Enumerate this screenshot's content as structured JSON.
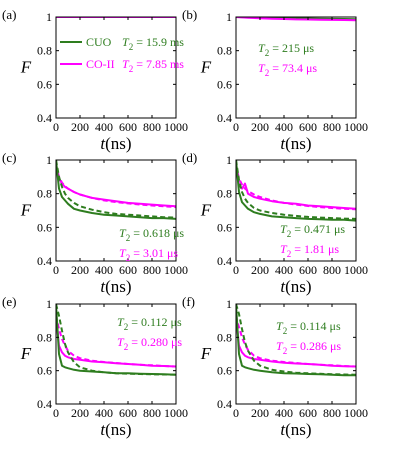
{
  "colors": {
    "green": "#2e7d1f",
    "magenta": "#ff00ff"
  },
  "chart_data": [
    {
      "type": "line",
      "label": "(a)",
      "xlabel": "t(ns)",
      "ylabel": "F",
      "xlim": [
        0,
        1000
      ],
      "ylim": [
        0.4,
        1.0
      ],
      "xticks": [
        "0",
        "200",
        "400",
        "600",
        "800",
        "1000"
      ],
      "yticks": [
        "0.4",
        "0.6",
        "0.8",
        "1"
      ],
      "legend": {
        "placement": "upper-left",
        "entries": [
          {
            "label": "CUO",
            "color": "green"
          },
          {
            "label": "CO-II",
            "color": "magenta"
          }
        ]
      },
      "annotations": [
        {
          "text": "T2 = 15.9 ms",
          "color": "green"
        },
        {
          "text": "T2 = 7.85 ms",
          "color": "magenta"
        }
      ],
      "x": [
        0,
        100,
        200,
        300,
        400,
        500,
        600,
        700,
        800,
        900,
        1000
      ],
      "series": [
        {
          "name": "CUO",
          "color": "green",
          "style": "solid",
          "values": [
            1,
            1,
            1,
            1,
            1,
            1,
            1,
            1,
            1,
            1,
            1
          ]
        },
        {
          "name": "CO-II",
          "color": "magenta",
          "style": "solid",
          "values": [
            1,
            1,
            1,
            1,
            1,
            1,
            1,
            1,
            1,
            1,
            1
          ]
        }
      ]
    },
    {
      "type": "line",
      "label": "(b)",
      "xlabel": "t(ns)",
      "ylabel": "F",
      "xlim": [
        0,
        1000
      ],
      "ylim": [
        0.4,
        1.0
      ],
      "xticks": [
        "0",
        "200",
        "400",
        "600",
        "800",
        "1000"
      ],
      "yticks": [
        "0.4",
        "0.6",
        "0.8",
        "1"
      ],
      "annotations": [
        {
          "text": "T2 = 215 μs",
          "color": "green"
        },
        {
          "text": "T2 = 73.4 μs",
          "color": "magenta"
        }
      ],
      "x": [
        0,
        100,
        200,
        300,
        400,
        500,
        600,
        700,
        800,
        900,
        1000
      ],
      "series": [
        {
          "color": "green",
          "style": "solid",
          "values": [
            1,
            0.998,
            0.996,
            0.994,
            0.993,
            0.992,
            0.991,
            0.99,
            0.989,
            0.988,
            0.987
          ]
        },
        {
          "color": "magenta",
          "style": "solid",
          "values": [
            1,
            0.996,
            0.993,
            0.99,
            0.988,
            0.986,
            0.985,
            0.984,
            0.983,
            0.982,
            0.981
          ]
        }
      ]
    },
    {
      "type": "line",
      "label": "(c)",
      "xlabel": "t(ns)",
      "ylabel": "F",
      "xlim": [
        0,
        1000
      ],
      "ylim": [
        0.4,
        1.0
      ],
      "xticks": [
        "0",
        "200",
        "400",
        "600",
        "800",
        "1000"
      ],
      "yticks": [
        "0.4",
        "0.6",
        "0.8",
        "1"
      ],
      "annotations": [
        {
          "text": "T2 = 0.618 μs",
          "color": "green"
        },
        {
          "text": "T2 = 3.01 μs",
          "color": "magenta"
        }
      ],
      "x": [
        0,
        25,
        50,
        75,
        100,
        150,
        200,
        300,
        400,
        500,
        600,
        700,
        800,
        900,
        1000
      ],
      "series": [
        {
          "color": "magenta",
          "style": "solid",
          "values": [
            0.97,
            0.89,
            0.86,
            0.84,
            0.83,
            0.81,
            0.795,
            0.775,
            0.765,
            0.755,
            0.745,
            0.74,
            0.735,
            0.73,
            0.725
          ]
        },
        {
          "color": "magenta",
          "style": "dashed",
          "values": [
            0.97,
            0.9,
            0.865,
            0.845,
            0.83,
            0.81,
            0.795,
            0.775,
            0.76,
            0.75,
            0.742,
            0.735,
            0.73,
            0.725,
            0.72
          ]
        },
        {
          "color": "green",
          "style": "solid",
          "values": [
            1,
            0.83,
            0.78,
            0.76,
            0.74,
            0.71,
            0.7,
            0.685,
            0.675,
            0.67,
            0.665,
            0.66,
            0.655,
            0.655,
            0.65
          ]
        },
        {
          "color": "green",
          "style": "dashed",
          "values": [
            1,
            0.9,
            0.84,
            0.8,
            0.775,
            0.745,
            0.725,
            0.705,
            0.69,
            0.68,
            0.675,
            0.67,
            0.665,
            0.66,
            0.658
          ]
        }
      ]
    },
    {
      "type": "line",
      "label": "(d)",
      "xlabel": "t(ns)",
      "ylabel": "F",
      "xlim": [
        0,
        1000
      ],
      "ylim": [
        0.4,
        1.0
      ],
      "xticks": [
        "0",
        "200",
        "400",
        "600",
        "800",
        "1000"
      ],
      "yticks": [
        "0.4",
        "0.6",
        "0.8",
        "1"
      ],
      "annotations": [
        {
          "text": "T2 = 0.471 μs",
          "color": "green"
        },
        {
          "text": "T2 = 1.81 μs",
          "color": "magenta"
        }
      ],
      "x": [
        0,
        25,
        50,
        75,
        100,
        150,
        200,
        300,
        400,
        500,
        600,
        700,
        800,
        900,
        1000
      ],
      "series": [
        {
          "color": "magenta",
          "style": "solid",
          "values": [
            0.97,
            0.85,
            0.83,
            0.86,
            0.8,
            0.78,
            0.77,
            0.755,
            0.745,
            0.74,
            0.73,
            0.725,
            0.72,
            0.715,
            0.71
          ]
        },
        {
          "color": "magenta",
          "style": "dashed",
          "values": [
            0.97,
            0.89,
            0.855,
            0.83,
            0.815,
            0.795,
            0.78,
            0.76,
            0.745,
            0.735,
            0.727,
            0.72,
            0.715,
            0.71,
            0.707
          ]
        },
        {
          "color": "green",
          "style": "solid",
          "values": [
            1,
            0.81,
            0.75,
            0.73,
            0.71,
            0.69,
            0.68,
            0.665,
            0.66,
            0.655,
            0.65,
            0.648,
            0.645,
            0.645,
            0.64
          ]
        },
        {
          "color": "green",
          "style": "dashed",
          "values": [
            1,
            0.88,
            0.81,
            0.77,
            0.745,
            0.715,
            0.7,
            0.685,
            0.675,
            0.668,
            0.662,
            0.658,
            0.655,
            0.652,
            0.65
          ]
        }
      ]
    },
    {
      "type": "line",
      "label": "(e)",
      "xlabel": "t(ns)",
      "ylabel": "F",
      "xlim": [
        0,
        1000
      ],
      "ylim": [
        0.4,
        1.0
      ],
      "xticks": [
        "0",
        "200",
        "400",
        "600",
        "800",
        "1000"
      ],
      "yticks": [
        "0.4",
        "0.6",
        "0.8",
        "1"
      ],
      "annotations": [
        {
          "text": "T2 = 0.112 μs",
          "color": "green"
        },
        {
          "text": "T2 = 0.280 μs",
          "color": "magenta"
        }
      ],
      "x": [
        0,
        25,
        50,
        75,
        100,
        150,
        200,
        300,
        400,
        500,
        600,
        700,
        800,
        900,
        1000
      ],
      "series": [
        {
          "color": "magenta",
          "style": "solid",
          "values": [
            0.93,
            0.75,
            0.71,
            0.69,
            0.68,
            0.67,
            0.665,
            0.655,
            0.65,
            0.645,
            0.64,
            0.635,
            0.63,
            0.628,
            0.625
          ]
        },
        {
          "color": "magenta",
          "style": "dashed",
          "values": [
            0.93,
            0.85,
            0.79,
            0.75,
            0.72,
            0.69,
            0.675,
            0.66,
            0.652,
            0.646,
            0.64,
            0.636,
            0.632,
            0.628,
            0.625
          ]
        },
        {
          "color": "green",
          "style": "solid",
          "values": [
            1,
            0.7,
            0.63,
            0.62,
            0.615,
            0.605,
            0.6,
            0.595,
            0.59,
            0.585,
            0.585,
            0.582,
            0.58,
            0.578,
            0.575
          ]
        },
        {
          "color": "green",
          "style": "dashed",
          "values": [
            1,
            0.93,
            0.84,
            0.76,
            0.71,
            0.65,
            0.62,
            0.6,
            0.59,
            0.585,
            0.582,
            0.58,
            0.578,
            0.577,
            0.576
          ]
        }
      ]
    },
    {
      "type": "line",
      "label": "(f)",
      "xlabel": "t(ns)",
      "ylabel": "F",
      "xlim": [
        0,
        1000
      ],
      "ylim": [
        0.4,
        1.0
      ],
      "xticks": [
        "0",
        "200",
        "400",
        "600",
        "800",
        "1000"
      ],
      "yticks": [
        "0.4",
        "0.6",
        "0.8",
        "1"
      ],
      "annotations": [
        {
          "text": "T2 = 0.114 μs",
          "color": "green"
        },
        {
          "text": "T2 = 0.286 μs",
          "color": "magenta"
        }
      ],
      "x": [
        0,
        25,
        50,
        75,
        100,
        150,
        200,
        300,
        400,
        500,
        600,
        700,
        800,
        900,
        1000
      ],
      "series": [
        {
          "color": "magenta",
          "style": "solid",
          "values": [
            0.93,
            0.75,
            0.71,
            0.69,
            0.68,
            0.67,
            0.665,
            0.655,
            0.648,
            0.643,
            0.64,
            0.635,
            0.63,
            0.627,
            0.625
          ]
        },
        {
          "color": "magenta",
          "style": "dashed",
          "values": [
            0.93,
            0.86,
            0.8,
            0.755,
            0.725,
            0.69,
            0.675,
            0.66,
            0.652,
            0.646,
            0.64,
            0.636,
            0.632,
            0.628,
            0.625
          ]
        },
        {
          "color": "green",
          "style": "solid",
          "values": [
            1,
            0.7,
            0.63,
            0.62,
            0.615,
            0.605,
            0.6,
            0.59,
            0.585,
            0.583,
            0.58,
            0.578,
            0.575,
            0.573,
            0.572
          ]
        },
        {
          "color": "green",
          "style": "dashed",
          "values": [
            1,
            0.94,
            0.85,
            0.77,
            0.72,
            0.66,
            0.63,
            0.605,
            0.595,
            0.588,
            0.584,
            0.581,
            0.579,
            0.577,
            0.576
          ]
        }
      ]
    }
  ]
}
